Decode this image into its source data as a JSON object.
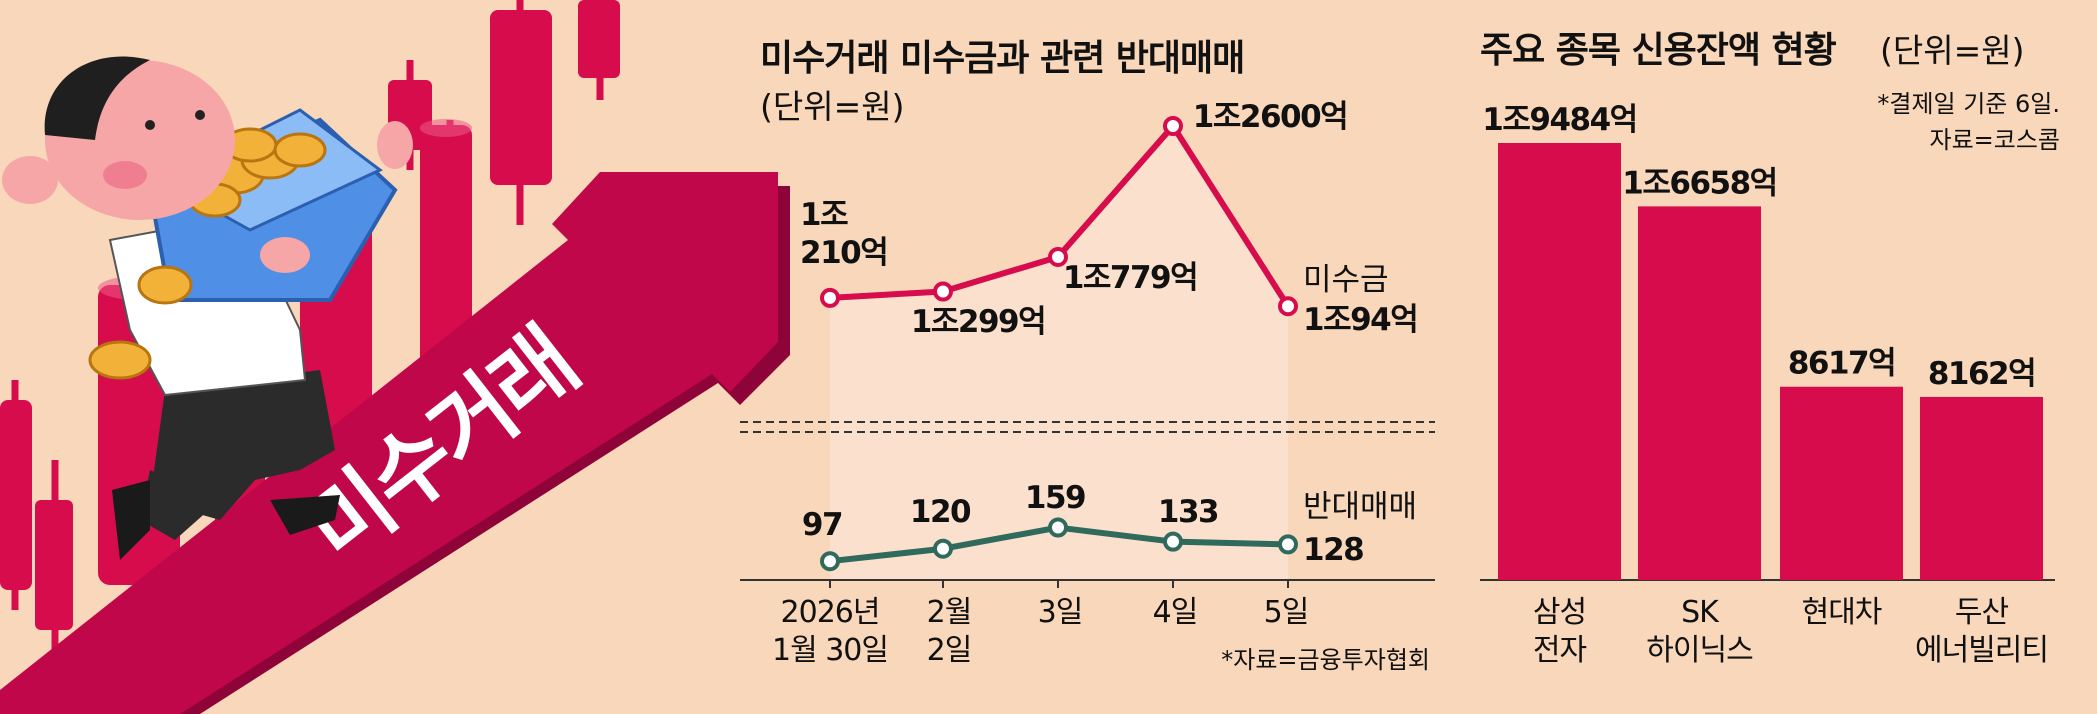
{
  "illustration": {
    "arrow_label": "미수거래",
    "icons": [
      "man-carrying-coin-box-icon",
      "candlestick-chart-icon",
      "up-arrow-icon",
      "gold-coin-icon"
    ]
  },
  "colors": {
    "background": "#f8d7bb",
    "crimson": "#d60c4c",
    "arrow": "#c0074a",
    "teal": "#2f6a5c",
    "shade": "#fbe1cd"
  },
  "chart_data": [
    {
      "type": "line",
      "title": "미수거래 미수금과 관련 반대매매",
      "unit": "(단위=원)",
      "x": [
        {
          "line1": "2026년",
          "line2": "1월 30일"
        },
        {
          "line1": "2월",
          "line2": "2일"
        },
        {
          "line1": "3일",
          "line2": ""
        },
        {
          "line1": "4일",
          "line2": ""
        },
        {
          "line1": "5일",
          "line2": ""
        }
      ],
      "series": [
        {
          "name": "미수금",
          "values": [
            10210,
            10299,
            10779,
            12600,
            10094
          ],
          "labels": [
            "1조 210억",
            "1조299억",
            "1조779억",
            "1조2600억",
            "1조94억"
          ],
          "color": "#d60c4c"
        },
        {
          "name": "반대매매",
          "values": [
            97,
            120,
            159,
            133,
            128
          ],
          "labels": [
            "97",
            "120",
            "159",
            "133",
            "128"
          ],
          "color": "#2f6a5c"
        }
      ],
      "axis_break": true,
      "source": "*자료=금융투자협회"
    },
    {
      "type": "bar",
      "title": "주요 종목 신용잔액 현황",
      "unit": "(단위=원)",
      "note": "*결제일 기준 6일.",
      "source": "자료=코스콤",
      "categories": [
        {
          "line1": "삼성",
          "line2": "전자"
        },
        {
          "line1": "SK",
          "line2": "하이닉스"
        },
        {
          "line1": "현대차",
          "line2": ""
        },
        {
          "line1": "두산",
          "line2": "에너빌리티"
        }
      ],
      "values": [
        19484,
        16658,
        8617,
        8162
      ],
      "labels": [
        "1조9484억",
        "1조6658억",
        "8617억",
        "8162억"
      ],
      "ylim": [
        0,
        20000
      ]
    }
  ]
}
